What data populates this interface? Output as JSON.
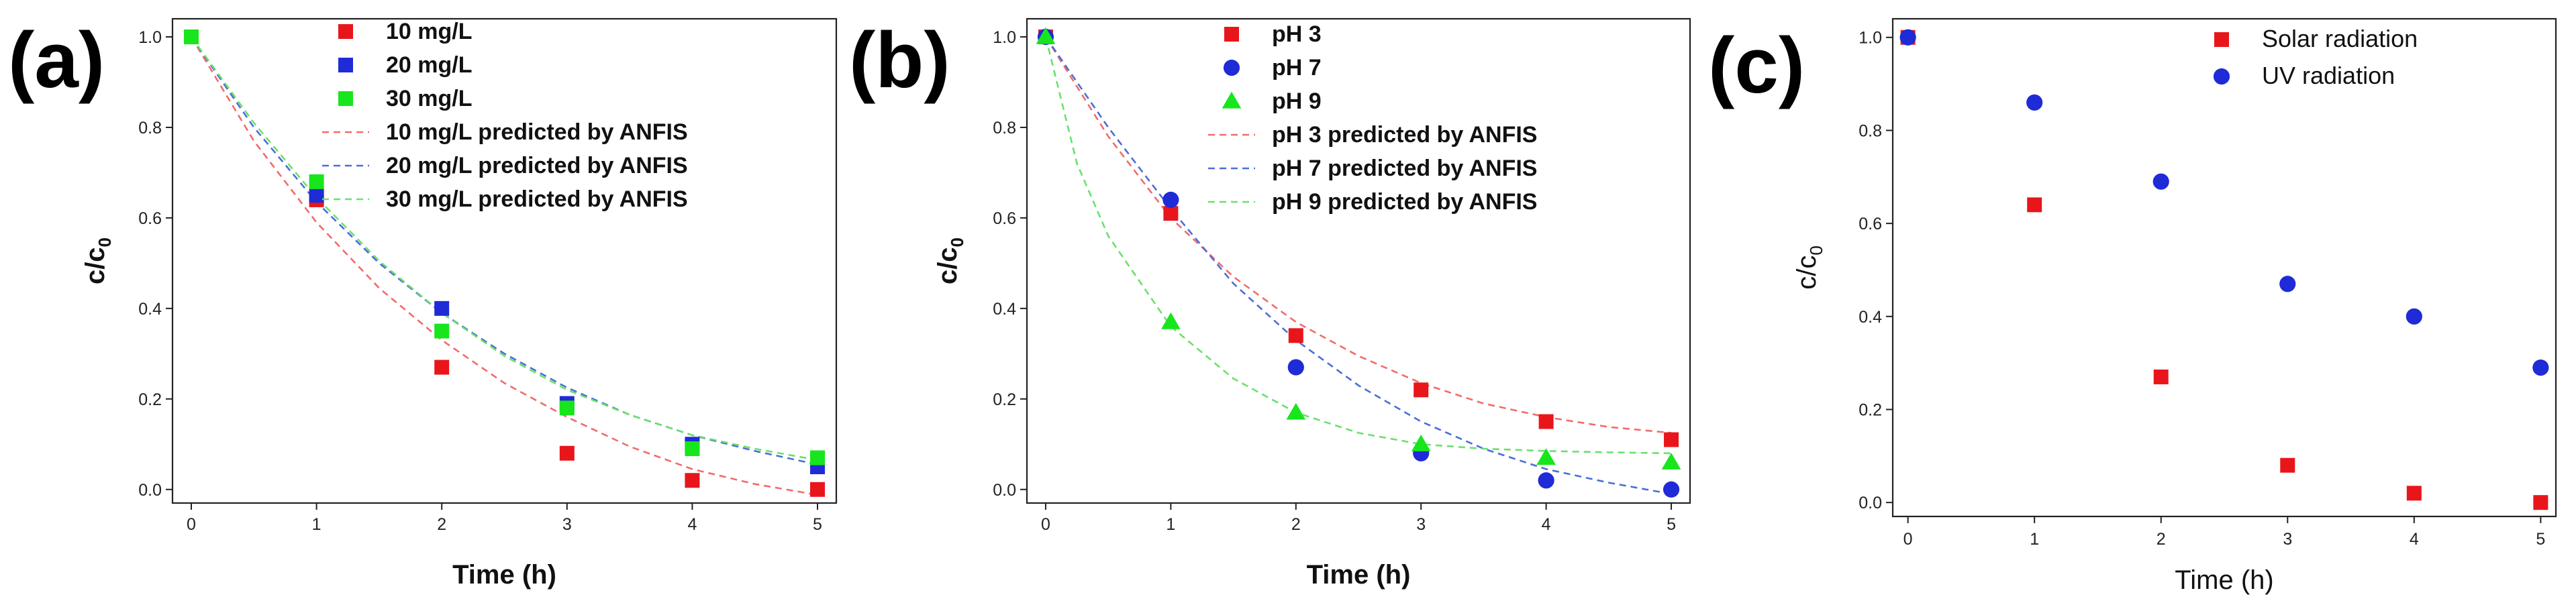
{
  "figure": {
    "panels": [
      "(a)",
      "(b)",
      "(c)"
    ]
  },
  "chart_data": [
    {
      "panel": "(a)",
      "type": "scatter",
      "xlabel": "Time (h)",
      "ylabel": "c/c0",
      "ylabel_main": "c/c",
      "ylabel_sub": "0",
      "xlim": [
        -0.15,
        5.15
      ],
      "ylim": [
        -0.03,
        1.04
      ],
      "xticks": [
        0,
        1,
        2,
        3,
        4,
        5
      ],
      "yticks": [
        0.0,
        0.2,
        0.4,
        0.6,
        0.8,
        1.0
      ],
      "ytick_labels": [
        "0.0",
        "0.2",
        "0.4",
        "0.6",
        "0.8",
        "1.0"
      ],
      "series": [
        {
          "name": "10 mg/L",
          "kind": "marker",
          "marker": "square",
          "color": "#e8161b",
          "x": [
            0,
            1,
            2,
            3,
            4,
            5
          ],
          "y": [
            1.0,
            0.64,
            0.27,
            0.08,
            0.02,
            0.0
          ]
        },
        {
          "name": "20 mg/L",
          "kind": "marker",
          "marker": "square",
          "color": "#1f2bd6",
          "x": [
            0,
            1,
            2,
            3,
            4,
            5
          ],
          "y": [
            1.0,
            0.65,
            0.4,
            0.19,
            0.1,
            0.05
          ]
        },
        {
          "name": "30 mg/L",
          "kind": "marker",
          "marker": "square",
          "color": "#17e61c",
          "x": [
            0,
            1,
            2,
            3,
            4,
            5
          ],
          "y": [
            1.0,
            0.68,
            0.35,
            0.18,
            0.09,
            0.07
          ]
        },
        {
          "name": "10 mg/L predicted by ANFIS",
          "kind": "dashed",
          "color": "#f26b6b",
          "x": [
            0,
            0.5,
            1,
            1.5,
            2,
            2.5,
            3,
            3.5,
            4,
            4.5,
            5
          ],
          "y": [
            1.0,
            0.77,
            0.59,
            0.445,
            0.33,
            0.235,
            0.16,
            0.095,
            0.045,
            0.012,
            -0.012
          ]
        },
        {
          "name": "20 mg/L predicted by ANFIS",
          "kind": "dashed",
          "color": "#4a6ed8",
          "x": [
            0,
            0.5,
            1,
            1.5,
            2,
            2.5,
            3,
            3.5,
            4,
            4.5,
            5
          ],
          "y": [
            1.0,
            0.8,
            0.635,
            0.5,
            0.39,
            0.3,
            0.225,
            0.165,
            0.12,
            0.085,
            0.055
          ]
        },
        {
          "name": "30 mg/L predicted by ANFIS",
          "kind": "dashed",
          "color": "#6be06b",
          "x": [
            0,
            0.5,
            1,
            1.5,
            2,
            2.5,
            3,
            3.5,
            4,
            4.5,
            5
          ],
          "y": [
            1.0,
            0.81,
            0.645,
            0.505,
            0.39,
            0.295,
            0.22,
            0.165,
            0.12,
            0.09,
            0.065
          ]
        }
      ]
    },
    {
      "panel": "(b)",
      "type": "scatter",
      "xlabel": "Time (h)",
      "ylabel": "c/c0",
      "ylabel_main": "c/c",
      "ylabel_sub": "0",
      "xlim": [
        -0.15,
        5.15
      ],
      "ylim": [
        -0.03,
        1.04
      ],
      "xticks": [
        0,
        1,
        2,
        3,
        4,
        5
      ],
      "yticks": [
        0.0,
        0.2,
        0.4,
        0.6,
        0.8,
        1.0
      ],
      "ytick_labels": [
        "0.0",
        "0.2",
        "0.4",
        "0.6",
        "0.8",
        "1.0"
      ],
      "series": [
        {
          "name": "pH 3",
          "kind": "marker",
          "marker": "square",
          "color": "#e8161b",
          "x": [
            0,
            1,
            2,
            3,
            4,
            5
          ],
          "y": [
            1.0,
            0.61,
            0.34,
            0.22,
            0.15,
            0.11
          ]
        },
        {
          "name": "pH 7",
          "kind": "marker",
          "marker": "circle",
          "color": "#1f2bd6",
          "x": [
            0,
            1,
            2,
            3,
            4,
            5
          ],
          "y": [
            1.0,
            0.64,
            0.27,
            0.08,
            0.02,
            0.0
          ]
        },
        {
          "name": "pH 9",
          "kind": "marker",
          "marker": "triangle",
          "color": "#17e61c",
          "x": [
            0,
            1,
            2,
            3,
            4,
            5
          ],
          "y": [
            1.0,
            0.37,
            0.17,
            0.1,
            0.07,
            0.06
          ]
        },
        {
          "name": "pH 3 predicted by ANFIS",
          "kind": "dashed",
          "color": "#f26b6b",
          "x": [
            0,
            0.5,
            1,
            1.5,
            2,
            2.5,
            3,
            3.5,
            4,
            4.5,
            5
          ],
          "y": [
            1.0,
            0.78,
            0.6,
            0.47,
            0.37,
            0.295,
            0.235,
            0.19,
            0.16,
            0.138,
            0.125
          ]
        },
        {
          "name": "pH 7 predicted by ANFIS",
          "kind": "dashed",
          "color": "#4a6ed8",
          "x": [
            0,
            0.5,
            1,
            1.5,
            2,
            2.5,
            3,
            3.5,
            4,
            4.5,
            5
          ],
          "y": [
            1.0,
            0.8,
            0.62,
            0.455,
            0.33,
            0.23,
            0.15,
            0.09,
            0.045,
            0.015,
            -0.01
          ]
        },
        {
          "name": "pH 9 predicted by ANFIS",
          "kind": "dashed",
          "color": "#6be06b",
          "x": [
            0,
            0.25,
            0.5,
            1,
            1.5,
            2,
            2.5,
            3,
            3.5,
            4,
            4.5,
            5
          ],
          "y": [
            1.0,
            0.72,
            0.56,
            0.36,
            0.245,
            0.17,
            0.125,
            0.1,
            0.09,
            0.085,
            0.082,
            0.08
          ]
        }
      ]
    },
    {
      "panel": "(c)",
      "type": "scatter",
      "xlabel": "Time (h)",
      "ylabel": "c/c0",
      "ylabel_main": "c/c",
      "ylabel_sub": "0",
      "xlim": [
        -0.12,
        5.12
      ],
      "ylim": [
        -0.03,
        1.04
      ],
      "xticks": [
        0,
        1,
        2,
        3,
        4,
        5
      ],
      "yticks": [
        0.0,
        0.2,
        0.4,
        0.6,
        0.8,
        1.0
      ],
      "ytick_labels": [
        "0.0",
        "0.2",
        "0.4",
        "0.6",
        "0.8",
        "1.0"
      ],
      "series": [
        {
          "name": "Solar radiation",
          "kind": "marker",
          "marker": "square",
          "color": "#e8161b",
          "x": [
            0,
            1,
            2,
            3,
            4,
            5
          ],
          "y": [
            1.0,
            0.64,
            0.27,
            0.08,
            0.02,
            0.0
          ]
        },
        {
          "name": "UV radiation",
          "kind": "marker",
          "marker": "circle",
          "color": "#1f2bd6",
          "x": [
            0,
            1,
            2,
            3,
            4,
            5
          ],
          "y": [
            1.0,
            0.86,
            0.69,
            0.47,
            0.4,
            0.29
          ]
        }
      ]
    }
  ]
}
